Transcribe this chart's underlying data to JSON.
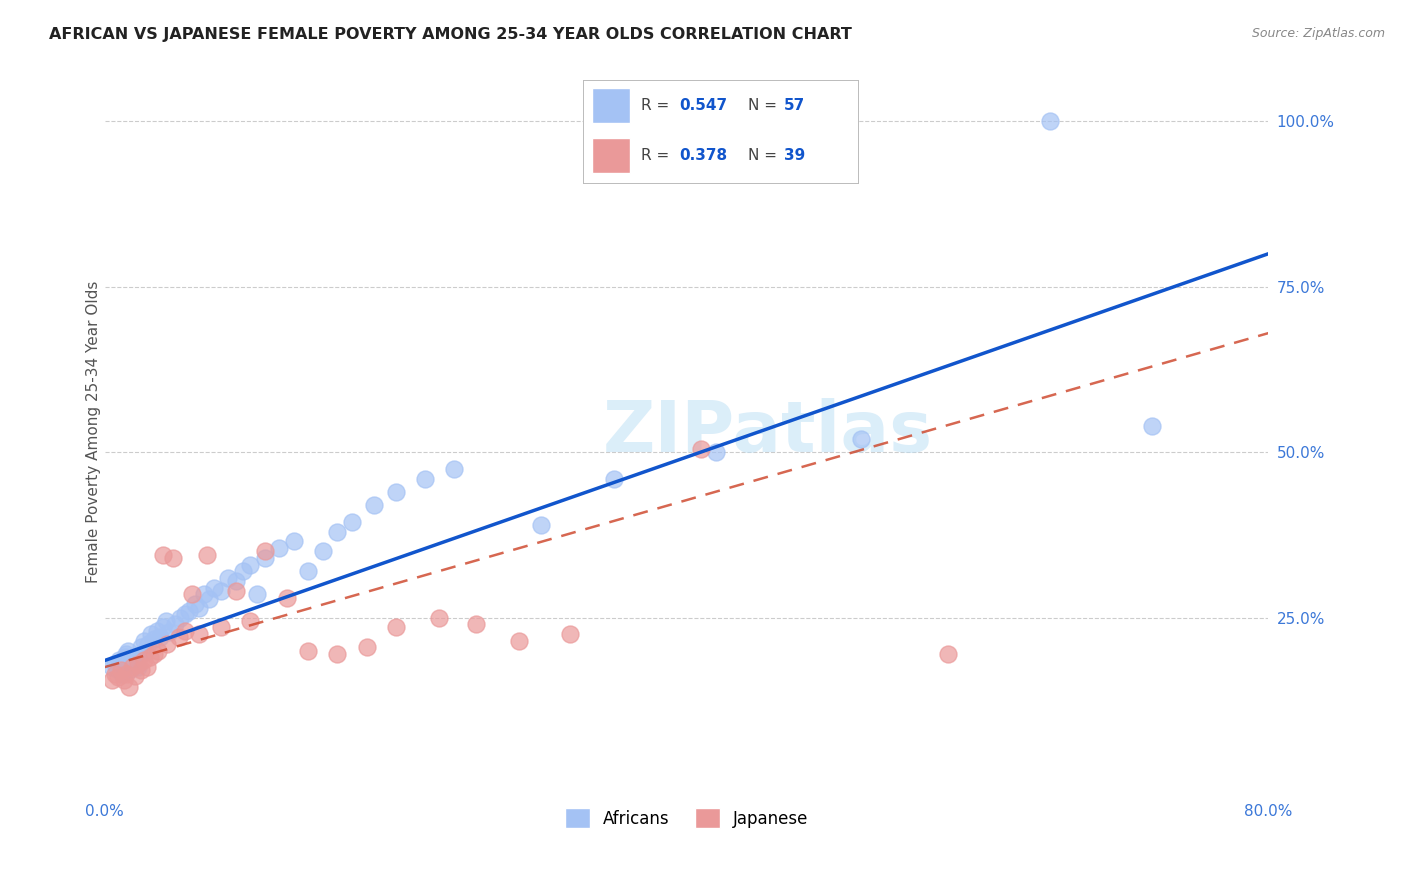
{
  "title": "AFRICAN VS JAPANESE FEMALE POVERTY AMONG 25-34 YEAR OLDS CORRELATION CHART",
  "source": "Source: ZipAtlas.com",
  "ylabel": "Female Poverty Among 25-34 Year Olds",
  "xlim": [
    0.0,
    0.8
  ],
  "ylim": [
    -0.02,
    1.08
  ],
  "xticks": [
    0.0,
    0.1,
    0.2,
    0.3,
    0.4,
    0.5,
    0.6,
    0.7,
    0.8
  ],
  "xticklabels": [
    "0.0%",
    "",
    "",
    "",
    "",
    "",
    "",
    "",
    "80.0%"
  ],
  "yticks": [
    0.25,
    0.5,
    0.75,
    1.0
  ],
  "yticklabels": [
    "25.0%",
    "50.0%",
    "75.0%",
    "100.0%"
  ],
  "african_R": 0.547,
  "african_N": 57,
  "japanese_R": 0.378,
  "japanese_N": 39,
  "african_color": "#a4c2f4",
  "japanese_color": "#ea9999",
  "african_line_color": "#1155cc",
  "japanese_line_color": "#cc4125",
  "watermark": "ZIPatlas",
  "african_line_x0": 0.0,
  "african_line_y0": 0.185,
  "african_line_x1": 0.8,
  "african_line_y1": 0.8,
  "japanese_line_x0": 0.0,
  "japanese_line_y0": 0.175,
  "japanese_line_x1": 0.8,
  "japanese_line_y1": 0.68,
  "african_points_x": [
    0.005,
    0.007,
    0.009,
    0.01,
    0.011,
    0.012,
    0.014,
    0.015,
    0.016,
    0.018,
    0.02,
    0.021,
    0.022,
    0.023,
    0.025,
    0.027,
    0.028,
    0.03,
    0.032,
    0.034,
    0.036,
    0.038,
    0.04,
    0.042,
    0.044,
    0.048,
    0.052,
    0.055,
    0.058,
    0.062,
    0.065,
    0.068,
    0.072,
    0.075,
    0.08,
    0.085,
    0.09,
    0.095,
    0.1,
    0.105,
    0.11,
    0.12,
    0.13,
    0.14,
    0.15,
    0.16,
    0.17,
    0.185,
    0.2,
    0.22,
    0.24,
    0.3,
    0.35,
    0.42,
    0.52,
    0.65,
    0.72
  ],
  "african_points_y": [
    0.175,
    0.18,
    0.17,
    0.185,
    0.178,
    0.165,
    0.19,
    0.195,
    0.2,
    0.172,
    0.182,
    0.188,
    0.192,
    0.175,
    0.205,
    0.215,
    0.198,
    0.21,
    0.225,
    0.218,
    0.23,
    0.22,
    0.235,
    0.245,
    0.228,
    0.24,
    0.25,
    0.255,
    0.26,
    0.27,
    0.265,
    0.285,
    0.278,
    0.295,
    0.29,
    0.31,
    0.305,
    0.32,
    0.33,
    0.285,
    0.34,
    0.355,
    0.365,
    0.32,
    0.35,
    0.38,
    0.395,
    0.42,
    0.44,
    0.46,
    0.475,
    0.39,
    0.46,
    0.5,
    0.52,
    1.0,
    0.54
  ],
  "japanese_points_x": [
    0.005,
    0.007,
    0.009,
    0.011,
    0.013,
    0.015,
    0.017,
    0.019,
    0.021,
    0.023,
    0.025,
    0.027,
    0.029,
    0.031,
    0.034,
    0.037,
    0.04,
    0.043,
    0.047,
    0.051,
    0.055,
    0.06,
    0.065,
    0.07,
    0.08,
    0.09,
    0.1,
    0.11,
    0.125,
    0.14,
    0.16,
    0.18,
    0.2,
    0.23,
    0.255,
    0.285,
    0.32,
    0.41,
    0.58
  ],
  "japanese_points_y": [
    0.155,
    0.165,
    0.16,
    0.17,
    0.155,
    0.165,
    0.145,
    0.175,
    0.162,
    0.18,
    0.17,
    0.185,
    0.175,
    0.19,
    0.195,
    0.2,
    0.345,
    0.21,
    0.34,
    0.22,
    0.23,
    0.285,
    0.225,
    0.345,
    0.235,
    0.29,
    0.245,
    0.35,
    0.28,
    0.2,
    0.195,
    0.205,
    0.235,
    0.25,
    0.24,
    0.215,
    0.225,
    0.505,
    0.195
  ],
  "background_color": "#ffffff",
  "grid_color": "#c0c0c0"
}
